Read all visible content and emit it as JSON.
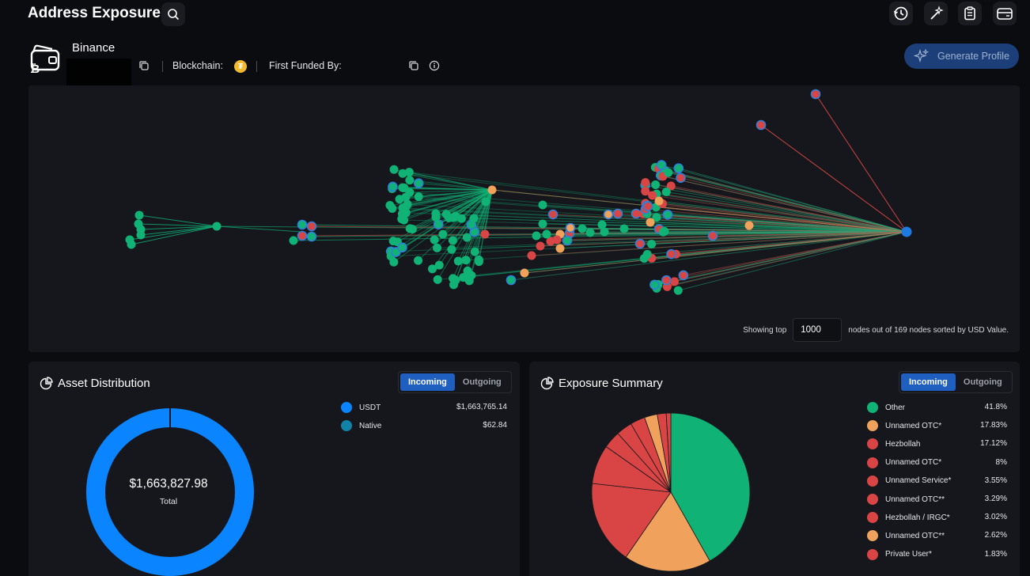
{
  "header": {
    "title": "Address Exposure"
  },
  "entity": {
    "name": "Binance",
    "blockchain_label": "Blockchain:",
    "first_funded_label": "First Funded By:",
    "generate_profile_label": "Generate Profile"
  },
  "graph": {
    "showing_top_label": "Showing top",
    "top_value": "1000",
    "suffix": "nodes out of 169 nodes sorted by USD Value."
  },
  "asset_distribution": {
    "title": "Asset Distribution",
    "toggle": {
      "incoming": "Incoming",
      "outgoing": "Outgoing"
    },
    "total_value": "$1,663,827.98",
    "total_label": "Total",
    "items": [
      {
        "label": "USDT",
        "value": "$1,663,765.14",
        "color": "#0a84ff"
      },
      {
        "label": "Native",
        "value": "$62.84",
        "color": "#1283a8"
      }
    ]
  },
  "exposure_summary": {
    "title": "Exposure Summary",
    "toggle": {
      "incoming": "Incoming",
      "outgoing": "Outgoing"
    },
    "items": [
      {
        "label": "Other",
        "value": "41.8%",
        "color": "#10b275",
        "pct": 41.8
      },
      {
        "label": "Unnamed OTC*",
        "value": "17.83%",
        "color": "#f0a25c",
        "pct": 17.83
      },
      {
        "label": "Hezbollah",
        "value": "17.12%",
        "color": "#d94545",
        "pct": 17.12
      },
      {
        "label": "Unnamed OTC*",
        "value": "8%",
        "color": "#d94545",
        "pct": 8
      },
      {
        "label": "Unnamed Service*",
        "value": "3.55%",
        "color": "#d94545",
        "pct": 3.55
      },
      {
        "label": "Unnamed OTC**",
        "value": "3.29%",
        "color": "#d94545",
        "pct": 3.29
      },
      {
        "label": "Hezbollah / IRGC*",
        "value": "3.02%",
        "color": "#d94545",
        "pct": 3.02
      },
      {
        "label": "Unnamed OTC**",
        "value": "2.62%",
        "color": "#f0a25c",
        "pct": 2.62
      },
      {
        "label": "Private User*",
        "value": "1.83%",
        "color": "#d94545",
        "pct": 1.83
      }
    ]
  },
  "colors": {
    "green": "#10b275",
    "red": "#d94545",
    "orange": "#f0a25c",
    "blue": "#1f7ae0"
  }
}
